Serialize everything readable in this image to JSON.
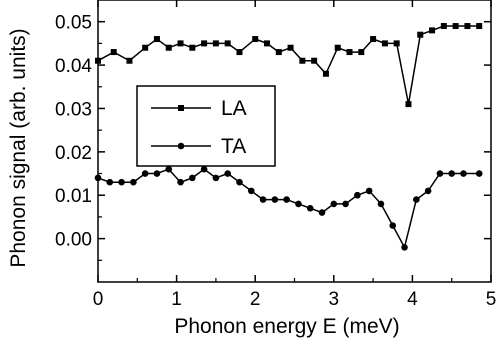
{
  "chart_data": {
    "type": "line",
    "xlabel": "Phonon energy E (meV)",
    "ylabel": "Phonon signal (arb. units)",
    "xlim": [
      0,
      5
    ],
    "ylim": [
      -0.01,
      0.055
    ],
    "x_ticks": [
      0,
      1,
      2,
      3,
      4,
      5
    ],
    "x_tick_labels": [
      "0",
      "1",
      "2",
      "3",
      "4",
      "5"
    ],
    "y_ticks": [
      0.0,
      0.01,
      0.02,
      0.03,
      0.04,
      0.05
    ],
    "y_tick_labels": [
      "0.00",
      "0.01",
      "0.02",
      "0.03",
      "0.04",
      "0.05"
    ],
    "grid": false,
    "legend_position": "middle-left",
    "series": [
      {
        "name": "LA",
        "marker": "square",
        "color": "#000000",
        "x": [
          0,
          0.2,
          0.4,
          0.6,
          0.75,
          0.9,
          1.05,
          1.2,
          1.35,
          1.5,
          1.65,
          1.8,
          2.0,
          2.15,
          2.3,
          2.45,
          2.6,
          2.75,
          2.9,
          3.05,
          3.2,
          3.35,
          3.5,
          3.65,
          3.8,
          3.95,
          4.1,
          4.25,
          4.4,
          4.55,
          4.7,
          4.85
        ],
        "y": [
          0.041,
          0.043,
          0.041,
          0.044,
          0.046,
          0.044,
          0.045,
          0.044,
          0.045,
          0.045,
          0.045,
          0.043,
          0.046,
          0.045,
          0.043,
          0.044,
          0.041,
          0.041,
          0.038,
          0.044,
          0.043,
          0.043,
          0.046,
          0.045,
          0.045,
          0.031,
          0.047,
          0.048,
          0.049,
          0.049,
          0.049,
          0.049
        ]
      },
      {
        "name": "TA",
        "marker": "circle",
        "color": "#000000",
        "x": [
          0,
          0.15,
          0.3,
          0.45,
          0.6,
          0.75,
          0.9,
          1.05,
          1.2,
          1.35,
          1.5,
          1.65,
          1.8,
          1.95,
          2.1,
          2.25,
          2.4,
          2.55,
          2.7,
          2.85,
          3.0,
          3.15,
          3.3,
          3.45,
          3.6,
          3.75,
          3.9,
          4.05,
          4.2,
          4.35,
          4.5,
          4.65,
          4.85
        ],
        "y": [
          0.014,
          0.013,
          0.013,
          0.013,
          0.015,
          0.015,
          0.016,
          0.013,
          0.014,
          0.016,
          0.014,
          0.015,
          0.013,
          0.011,
          0.009,
          0.009,
          0.009,
          0.008,
          0.007,
          0.006,
          0.008,
          0.008,
          0.01,
          0.011,
          0.008,
          0.003,
          -0.002,
          0.009,
          0.011,
          0.015,
          0.015,
          0.015,
          0.015
        ]
      }
    ]
  }
}
